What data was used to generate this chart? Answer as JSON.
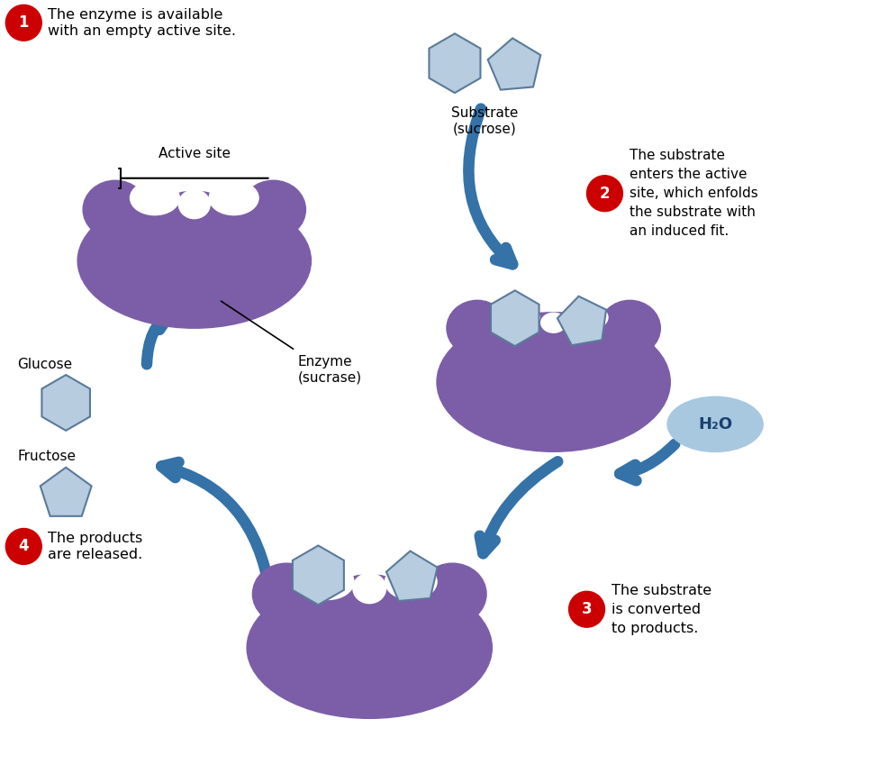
{
  "background_color": "#ffffff",
  "enzyme_color": "#7B5EA7",
  "substrate_color": "#B8CCDF",
  "substrate_border": "#5A7A9A",
  "arrow_color": "#3472A8",
  "h2o_fill": "#A8C8E0",
  "h2o_border": "#4878A8",
  "text_color": "#000000",
  "red_circle_color": "#CC0000",
  "step1_title": "The enzyme is available\nwith an empty active site.",
  "step2_title": "The substrate\nenters the active\nsite, which enfolds\nthe substrate with\nan induced fit.",
  "step3_title": "The substrate\nis converted\nto products.",
  "step4_title": "The products\nare released.",
  "substrate_label": "Substrate\n(sucrose)",
  "enzyme_label": "Enzyme\n(sucrase)",
  "active_site_label": "Active site",
  "glucose_label": "Glucose",
  "fructose_label": "Fructose",
  "h2o_label": "H₂O",
  "figsize": [
    9.76,
    8.69
  ],
  "dpi": 100
}
